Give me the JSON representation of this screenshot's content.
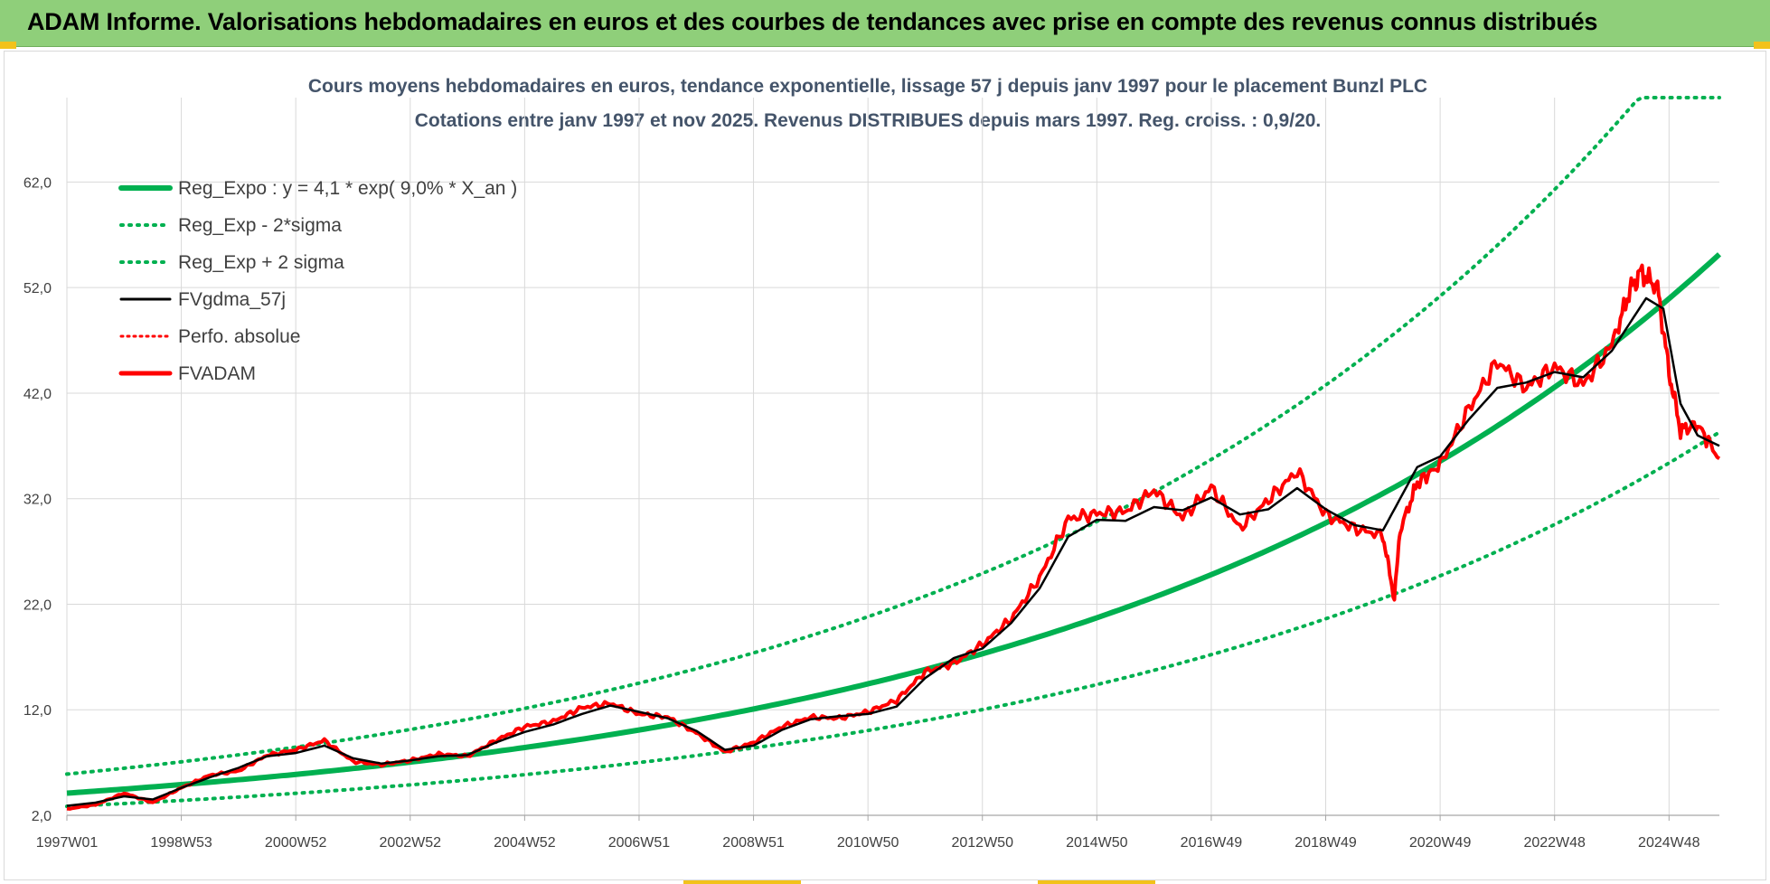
{
  "header": {
    "title": "ADAM Informe. Valorisations hebdomadaires en euros et des courbes de tendances avec prise en compte des revenus connus distribués"
  },
  "colors": {
    "banner": "#8fcf7a",
    "trend": "#00b050",
    "fv_smooth": "#000000",
    "fvadam": "#ff0000",
    "perfo": "#ff0000",
    "grid": "#d9d9d9"
  },
  "chart_data": {
    "type": "line",
    "title": "Cours moyens hebdomadaires en euros, tendance exponentielle, lissage 57 j depuis janv 1997 pour le placement Bunzl PLC",
    "subtitle": "Cotations entre janv 1997 et nov 2025. Revenus DISTRIBUES depuis mars 1997.  Reg. croiss. : 0,9/20.",
    "xlabel": "",
    "ylabel": "",
    "ylim": [
      2,
      70
    ],
    "xlim": [
      1997.0,
      2025.88
    ],
    "grid": true,
    "legend_position": "top-left",
    "yticks": [
      2.0,
      12.0,
      22.0,
      32.0,
      42.0,
      52.0,
      62.0
    ],
    "ytick_labels": [
      "2,0",
      "12,0",
      "22,0",
      "32,0",
      "42,0",
      "52,0",
      "62,0"
    ],
    "xticks": [
      1997.0,
      1999.0,
      2001.0,
      2003.0,
      2005.0,
      2007.0,
      2009.0,
      2011.0,
      2013.0,
      2015.0,
      2017.0,
      2019.0,
      2021.0,
      2023.0,
      2025.0
    ],
    "xtick_labels": [
      "1997W01",
      "1998W53",
      "2000W52",
      "2002W52",
      "2004W52",
      "2006W51",
      "2008W51",
      "2010W50",
      "2012W50",
      "2014W50",
      "2016W49",
      "2018W49",
      "2020W49",
      "2022W48",
      "2024W48"
    ],
    "trend": {
      "a": 4.1,
      "rate": 0.09,
      "sigma_factor": 1.44
    },
    "series": [
      {
        "name": "Reg_Expo : y = 4,1 * exp( 9,0% *  X_an )",
        "style": "trend"
      },
      {
        "name": "Reg_Exp - 2*sigma",
        "style": "trend_low"
      },
      {
        "name": "Reg_Exp + 2 sigma",
        "style": "trend_high"
      },
      {
        "name": "FVgdma_57j",
        "style": "smooth",
        "x": [
          1997.0,
          1997.5,
          1998.0,
          1998.5,
          1999.0,
          1999.5,
          2000.0,
          2000.5,
          2001.0,
          2001.5,
          2002.0,
          2002.5,
          2003.0,
          2003.5,
          2004.0,
          2004.5,
          2005.0,
          2005.5,
          2006.0,
          2006.5,
          2007.0,
          2007.5,
          2008.0,
          2008.5,
          2009.0,
          2009.5,
          2010.0,
          2010.5,
          2011.0,
          2011.5,
          2012.0,
          2012.5,
          2013.0,
          2013.5,
          2014.0,
          2014.5,
          2015.0,
          2015.5,
          2016.0,
          2016.5,
          2017.0,
          2017.5,
          2018.0,
          2018.5,
          2019.0,
          2019.5,
          2020.0,
          2020.3,
          2020.6,
          2021.0,
          2021.5,
          2022.0,
          2022.5,
          2023.0,
          2023.5,
          2024.0,
          2024.3,
          2024.6,
          2024.9,
          2025.2,
          2025.5,
          2025.88
        ],
        "values": [
          2.9,
          3.2,
          3.8,
          3.5,
          4.6,
          5.6,
          6.5,
          7.6,
          7.9,
          8.6,
          7.4,
          6.9,
          7.2,
          7.6,
          7.7,
          8.9,
          9.9,
          10.6,
          11.6,
          12.4,
          11.8,
          11.2,
          10.0,
          8.2,
          8.6,
          10.1,
          11.1,
          11.4,
          11.6,
          12.3,
          15.0,
          16.9,
          17.8,
          20.2,
          23.5,
          28.4,
          30.0,
          29.9,
          31.2,
          30.9,
          32.1,
          30.5,
          31.0,
          33.0,
          31.0,
          29.5,
          29.0,
          32.0,
          35.0,
          36.0,
          39.5,
          42.5,
          43.0,
          44.0,
          43.5,
          46.0,
          48.5,
          51.0,
          50.0,
          41.0,
          38.0,
          37.0
        ]
      },
      {
        "name": "Perfo. absolue",
        "style": "dotted"
      },
      {
        "name": "FVADAM",
        "style": "raw",
        "x": [
          1997.0,
          1997.5,
          1998.0,
          1998.5,
          1999.0,
          1999.5,
          2000.0,
          2000.5,
          2001.0,
          2001.5,
          2002.0,
          2002.5,
          2003.0,
          2003.5,
          2004.0,
          2004.5,
          2005.0,
          2005.5,
          2006.0,
          2006.5,
          2007.0,
          2007.5,
          2008.0,
          2008.5,
          2009.0,
          2009.5,
          2010.0,
          2010.5,
          2011.0,
          2011.5,
          2012.0,
          2012.5,
          2013.0,
          2013.5,
          2014.0,
          2014.5,
          2015.0,
          2015.5,
          2016.0,
          2016.5,
          2017.0,
          2017.5,
          2018.0,
          2018.5,
          2019.0,
          2019.5,
          2020.0,
          2020.2,
          2020.3,
          2020.6,
          2021.0,
          2021.5,
          2022.0,
          2022.5,
          2023.0,
          2023.5,
          2024.0,
          2024.3,
          2024.5,
          2024.8,
          2025.0,
          2025.2,
          2025.5,
          2025.88
        ],
        "values": [
          2.6,
          3.0,
          4.1,
          3.2,
          4.6,
          5.8,
          6.2,
          7.7,
          8.2,
          9.1,
          7.1,
          6.8,
          7.2,
          7.8,
          7.6,
          9.1,
          10.4,
          10.9,
          12.2,
          12.6,
          11.6,
          11.3,
          9.8,
          8.0,
          8.9,
          10.4,
          11.3,
          11.2,
          11.8,
          12.9,
          15.6,
          16.4,
          18.2,
          20.6,
          24.5,
          30.1,
          30.6,
          30.8,
          32.8,
          30.2,
          33.1,
          29.2,
          31.9,
          34.6,
          30.5,
          29.2,
          28.5,
          22.5,
          29.0,
          33.5,
          35.2,
          40.5,
          45.0,
          42.5,
          44.5,
          42.8,
          46.5,
          51.5,
          53.5,
          52.0,
          44.0,
          38.5,
          39.0,
          35.8
        ]
      }
    ],
    "legend_label_trend": "Reg_Expo : y = 4,1 * exp( 9,0% *  X_an )",
    "legend_label_low": "Reg_Exp - 2*sigma",
    "legend_label_high": "Reg_Exp + 2 sigma",
    "legend_label_smooth": "FVgdma_57j",
    "legend_label_perfo": "Perfo. absolue",
    "legend_label_fvadam": "FVADAM"
  }
}
